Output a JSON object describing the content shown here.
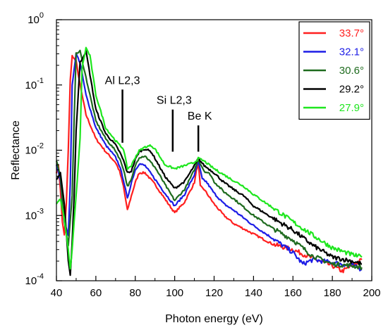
{
  "chart_data": {
    "type": "line",
    "title": "",
    "xlabel": "Photon energy (eV)",
    "ylabel": "Reflectance",
    "xlim": [
      40,
      200
    ],
    "ylim": [
      0.0001,
      1
    ],
    "yscale": "log",
    "grid": false,
    "legend_position": "top-right",
    "x_ticks": [
      "40",
      "60",
      "80",
      "100",
      "120",
      "140",
      "160",
      "180",
      "200"
    ],
    "y_ticks": [
      {
        "base": "10",
        "exp": "0",
        "value": 1
      },
      {
        "base": "10",
        "exp": "-1",
        "value": 0.1
      },
      {
        "base": "10",
        "exp": "-2",
        "value": 0.01
      },
      {
        "base": "10",
        "exp": "-3",
        "value": 0.001
      },
      {
        "base": "10",
        "exp": "-4",
        "value": 0.0001
      }
    ],
    "annotations": [
      {
        "text": "Al L2,3",
        "x": 73.5,
        "y_top": 0.085,
        "y_bottom": 0.013
      },
      {
        "text": "Si L2,3",
        "x": 99,
        "y_top": 0.042,
        "y_bottom": 0.0095
      },
      {
        "text": "Be K",
        "x": 112,
        "y_top": 0.024,
        "y_bottom": 0.0095
      }
    ],
    "series": [
      {
        "name": "33.7°",
        "color": "#ff1f1f",
        "x": [
          40,
          41,
          42,
          43,
          44,
          45,
          46,
          47,
          48,
          50,
          52,
          55,
          60,
          65,
          70,
          72,
          74,
          76,
          78,
          80,
          82,
          85,
          90,
          95,
          100,
          105,
          110,
          111,
          112,
          113,
          115,
          120,
          125,
          130,
          140,
          150,
          160,
          170,
          180,
          185,
          190,
          195
        ],
        "y": [
          0.0045,
          0.006,
          0.0025,
          0.0008,
          0.0005,
          0.0015,
          0.01,
          0.12,
          0.28,
          0.23,
          0.1,
          0.035,
          0.015,
          0.0095,
          0.0065,
          0.0048,
          0.0028,
          0.0012,
          0.002,
          0.0032,
          0.0045,
          0.0045,
          0.003,
          0.0018,
          0.0011,
          0.0016,
          0.0032,
          0.0048,
          0.0065,
          0.0028,
          0.0025,
          0.0015,
          0.001,
          0.00075,
          0.00052,
          0.00036,
          0.0003,
          0.00022,
          0.00017,
          0.00014,
          0.00017,
          0.00021
        ]
      },
      {
        "name": "32.1°",
        "color": "#1c1ce6",
        "x": [
          40,
          42,
          44,
          46,
          47,
          48,
          50,
          52,
          55,
          60,
          65,
          70,
          72,
          74,
          76,
          78,
          80,
          82,
          85,
          90,
          95,
          100,
          105,
          110,
          112,
          114,
          116,
          120,
          125,
          130,
          140,
          150,
          160,
          165,
          170,
          180,
          190,
          195
        ],
        "y": [
          0.006,
          0.0035,
          0.0008,
          0.0005,
          0.003,
          0.1,
          0.3,
          0.22,
          0.07,
          0.022,
          0.012,
          0.0078,
          0.0058,
          0.0035,
          0.0018,
          0.0032,
          0.005,
          0.0062,
          0.0058,
          0.0036,
          0.0022,
          0.0014,
          0.0021,
          0.0042,
          0.0068,
          0.0036,
          0.0033,
          0.0022,
          0.0015,
          0.0012,
          0.0007,
          0.00044,
          0.00027,
          0.00018,
          0.00021,
          0.00019,
          0.00017,
          0.00015
        ]
      },
      {
        "name": "30.6°",
        "color": "#1e6b1e",
        "x": [
          40,
          42,
          44,
          46,
          48,
          49,
          50,
          52,
          55,
          60,
          65,
          70,
          72,
          74,
          76,
          78,
          80,
          82,
          85,
          90,
          95,
          100,
          105,
          110,
          112,
          115,
          118,
          120,
          125,
          130,
          140,
          150,
          160,
          170,
          180,
          190,
          195
        ],
        "y": [
          0.007,
          0.004,
          0.0008,
          0.00035,
          0.002,
          0.03,
          0.3,
          0.33,
          0.13,
          0.028,
          0.015,
          0.0098,
          0.0075,
          0.0052,
          0.0028,
          0.0035,
          0.0058,
          0.0078,
          0.0082,
          0.0055,
          0.003,
          0.0017,
          0.0025,
          0.005,
          0.0072,
          0.0048,
          0.0043,
          0.0033,
          0.0023,
          0.0018,
          0.001,
          0.00063,
          0.00042,
          0.00024,
          0.00018,
          0.00017,
          0.00016
        ]
      },
      {
        "name": "29.2°",
        "color": "#000000",
        "x": [
          40,
          42,
          44,
          46,
          47,
          48,
          49,
          50,
          52,
          55,
          60,
          65,
          70,
          72,
          74,
          76,
          78,
          80,
          82,
          85,
          88,
          90,
          95,
          100,
          105,
          110,
          112,
          115,
          120,
          125,
          130,
          135,
          140,
          150,
          160,
          170,
          180,
          190,
          195
        ],
        "y": [
          0.0035,
          0.0045,
          0.0015,
          0.0002,
          0.00012,
          0.0004,
          0.002,
          0.02,
          0.22,
          0.33,
          0.042,
          0.018,
          0.012,
          0.0095,
          0.007,
          0.0045,
          0.0048,
          0.0072,
          0.0095,
          0.0105,
          0.0095,
          0.0075,
          0.004,
          0.0026,
          0.0033,
          0.0058,
          0.0075,
          0.0058,
          0.0045,
          0.0032,
          0.0025,
          0.002,
          0.0014,
          0.0009,
          0.0006,
          0.00035,
          0.00023,
          0.0002,
          0.00018
        ]
      },
      {
        "name": "27.9°",
        "color": "#1ee61e",
        "x": [
          40,
          42,
          44,
          46,
          47,
          48,
          49,
          50,
          52,
          53,
          55,
          57,
          60,
          65,
          70,
          72,
          74,
          76,
          78,
          80,
          82,
          85,
          88,
          90,
          95,
          100,
          105,
          110,
          112,
          115,
          120,
          125,
          130,
          135,
          140,
          150,
          160,
          170,
          180,
          190,
          195
        ],
        "y": [
          0.0015,
          0.0018,
          0.0009,
          0.0003,
          0.00015,
          0.0003,
          0.0008,
          0.002,
          0.015,
          0.18,
          0.37,
          0.28,
          0.07,
          0.022,
          0.014,
          0.012,
          0.0105,
          0.0052,
          0.0058,
          0.0078,
          0.0098,
          0.0112,
          0.0118,
          0.0105,
          0.006,
          0.0052,
          0.0058,
          0.0065,
          0.0075,
          0.0068,
          0.0052,
          0.0042,
          0.0034,
          0.0028,
          0.0021,
          0.0013,
          0.0008,
          0.0005,
          0.00032,
          0.00025,
          0.00023
        ]
      }
    ]
  }
}
